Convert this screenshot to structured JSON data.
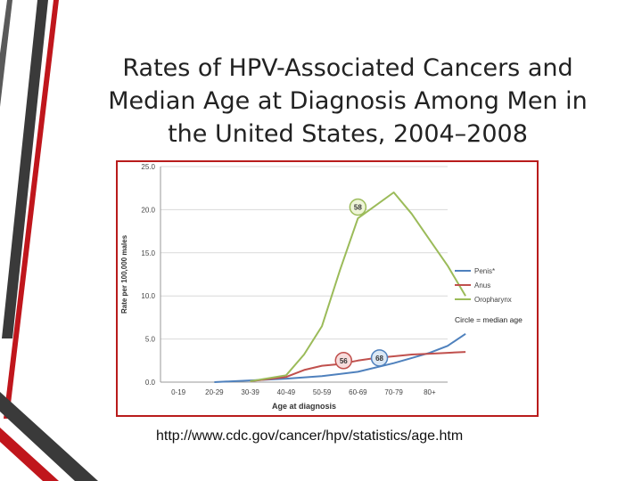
{
  "slide": {
    "title_lines": [
      "Rates of HPV-Associated Cancers and",
      "Median Age at Diagnosis Among Men in",
      "the United States, 2004–2008"
    ],
    "source_url": "http://www.cdc.gov/cancer/hpv/statistics/age.htm",
    "accent_color": "#c0161c",
    "decor_color": "#3a3a3a"
  },
  "chart_data": {
    "type": "line",
    "xlabel": "Age at diagnosis",
    "ylabel": "Rate per 100,000 males",
    "categories": [
      "0-19",
      "20-29",
      "30-39",
      "40-49",
      "50-59",
      "60-69",
      "70-79",
      "80+"
    ],
    "yticks": [
      "0.0",
      "5.0",
      "10.0",
      "15.0",
      "20.0",
      "25.0"
    ],
    "ylim": [
      0,
      25
    ],
    "grid": true,
    "legend_placement": "right",
    "legend_note": "Circle = median age",
    "series": [
      {
        "name": "Penis*",
        "color": "#4f81bd",
        "points": [
          [
            1.0,
            0.0
          ],
          [
            2.0,
            0.2
          ],
          [
            3.0,
            0.4
          ],
          [
            4.0,
            0.7
          ],
          [
            5.0,
            1.2
          ],
          [
            6.0,
            2.2
          ],
          [
            6.5,
            2.8
          ],
          [
            7.0,
            3.4
          ],
          [
            7.5,
            4.2
          ],
          [
            8.0,
            5.6
          ]
        ],
        "median_label": "68",
        "median_point": [
          5.6,
          2.8
        ]
      },
      {
        "name": "Anus",
        "color": "#c0504d",
        "points": [
          [
            2.0,
            0.1
          ],
          [
            3.0,
            0.6
          ],
          [
            3.5,
            1.4
          ],
          [
            4.0,
            1.9
          ],
          [
            4.5,
            2.1
          ],
          [
            5.0,
            2.5
          ],
          [
            5.5,
            2.8
          ],
          [
            6.0,
            3.0
          ],
          [
            6.5,
            3.2
          ],
          [
            7.0,
            3.3
          ],
          [
            7.5,
            3.4
          ],
          [
            8.0,
            3.5
          ]
        ],
        "median_label": "56",
        "median_point": [
          4.6,
          2.5
        ]
      },
      {
        "name": "Oropharynx",
        "color": "#9bbb59",
        "points": [
          [
            2.0,
            0.1
          ],
          [
            3.0,
            0.8
          ],
          [
            3.5,
            3.2
          ],
          [
            4.0,
            6.5
          ],
          [
            4.5,
            13.0
          ],
          [
            5.0,
            19.0
          ],
          [
            5.5,
            20.5
          ],
          [
            6.0,
            22.0
          ],
          [
            6.5,
            19.5
          ],
          [
            7.0,
            16.5
          ],
          [
            7.5,
            13.5
          ],
          [
            8.0,
            10.0
          ]
        ],
        "median_label": "58",
        "median_point": [
          5.0,
          20.3
        ]
      }
    ]
  }
}
